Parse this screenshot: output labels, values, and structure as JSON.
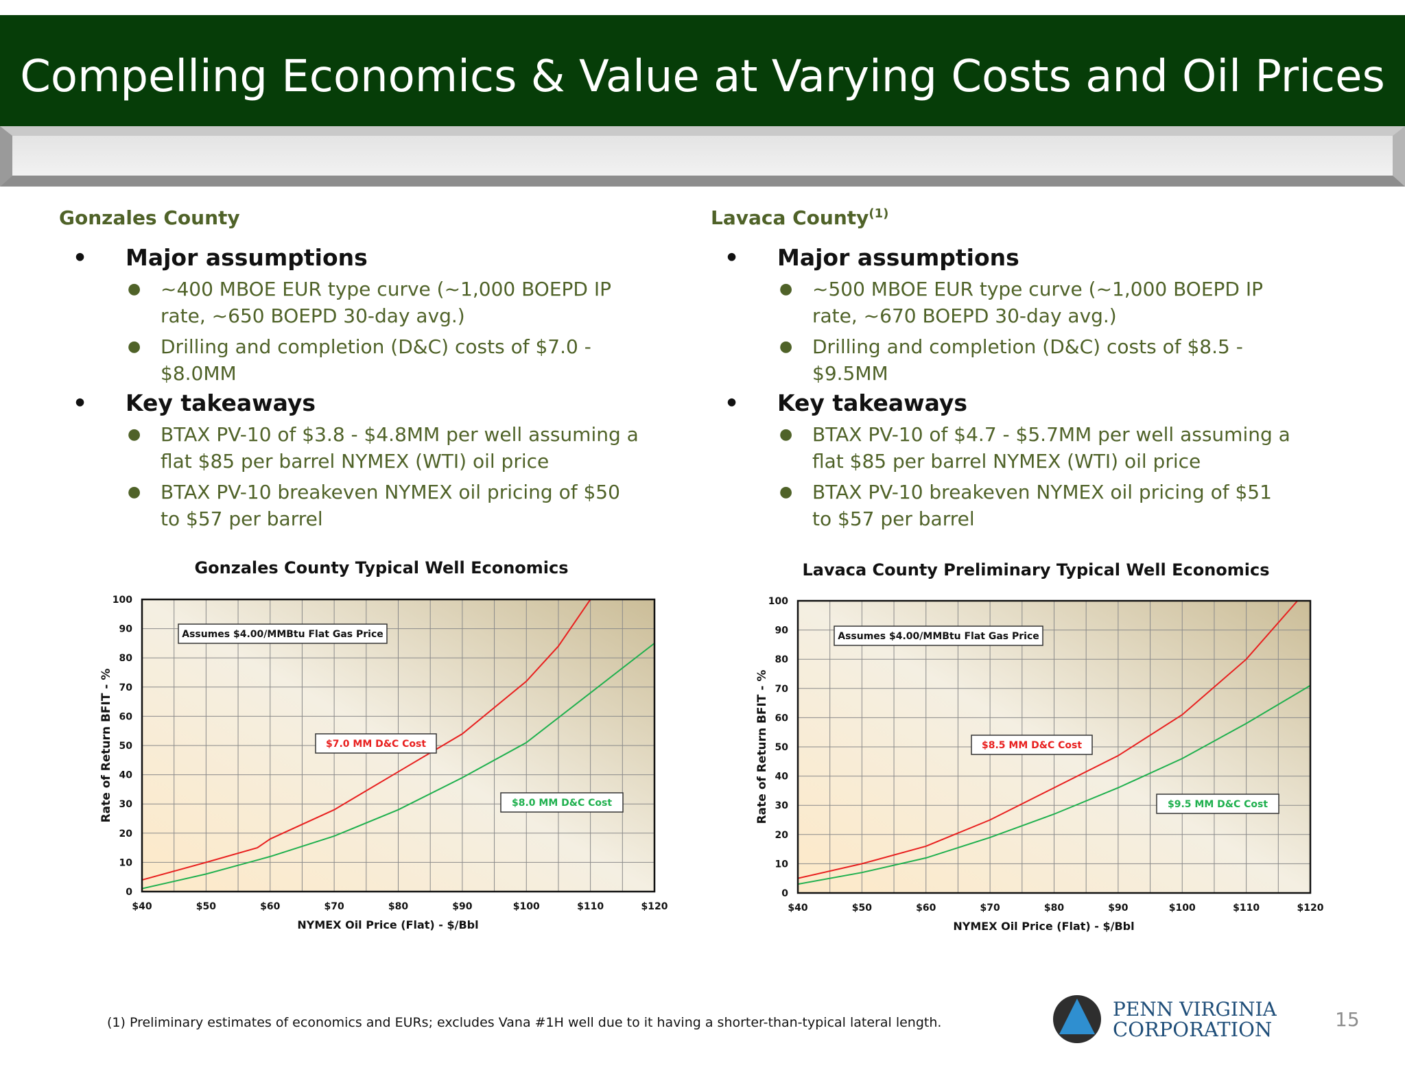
{
  "slide": {
    "title": "Compelling Economics & Value at Varying Costs and Oil Prices",
    "page_number": "15",
    "footnote": "(1) Preliminary estimates of economics and EURs; excludes Vana #1H well due to it having a shorter-than-typical lateral length.",
    "logo": {
      "line1": "PENN VIRGINIA",
      "line2": "CORPORATION",
      "icon": "triangle-in-circle-logo"
    }
  },
  "left": {
    "county": "Gonzales County",
    "h1": "Major assumptions",
    "a1": "~400 MBOE EUR type curve (~1,000 BOEPD IP rate, ~650 BOEPD 30-day avg.)",
    "a2": "Drilling and completion (D&C) costs of $7.0 - $8.0MM",
    "h2": "Key takeaways",
    "t1": "BTAX PV-10 of $3.8 - $4.8MM per well assuming a flat $85 per barrel NYMEX (WTI) oil price",
    "t2": "BTAX PV-10 breakeven NYMEX oil pricing of $50 to $57 per barrel"
  },
  "right": {
    "county": "Lavaca County",
    "county_sup": "(1)",
    "h1": "Major assumptions",
    "a1": "~500 MBOE EUR type curve (~1,000 BOEPD IP rate, ~670 BOEPD 30-day avg.)",
    "a2": "Drilling and completion (D&C) costs of $8.5 - $9.5MM",
    "h2": "Key takeaways",
    "t1": "BTAX PV-10 of $4.7 - $5.7MM per well assuming a flat $85 per barrel NYMEX (WTI) oil price",
    "t2": "BTAX PV-10 breakeven NYMEX oil pricing of $51 to $57 per barrel"
  },
  "colors": {
    "title_bg": "#063d08",
    "green_text": "#4f6228",
    "red_series": "#e8201f",
    "green_series": "#1fb04e"
  },
  "chart_data": [
    {
      "type": "line",
      "title": "Gonzales County Typical Well Economics",
      "xlabel": "NYMEX Oil Price (Flat) - $/Bbl",
      "ylabel": "Rate of Return BFIT - %",
      "xlim": [
        40,
        120
      ],
      "ylim": [
        0,
        100
      ],
      "x_ticks": [
        40,
        50,
        60,
        70,
        80,
        90,
        100,
        110,
        120
      ],
      "x_tick_labels": [
        "$40",
        "$50",
        "$60",
        "$70",
        "$80",
        "$90",
        "$100",
        "$110",
        "$120"
      ],
      "y_ticks": [
        0,
        10,
        20,
        30,
        40,
        50,
        60,
        70,
        80,
        90,
        100
      ],
      "grid": true,
      "annotation": "Assumes $4.00/MMBtu Flat Gas Price",
      "series": [
        {
          "name": "$7.0 MM D&C Cost",
          "color": "#e8201f",
          "x": [
            40,
            50,
            58,
            60,
            70,
            80,
            90,
            100,
            105,
            110
          ],
          "y": [
            4,
            10,
            15,
            18,
            28,
            41,
            54,
            72,
            84,
            100
          ]
        },
        {
          "name": "$8.0 MM D&C Cost",
          "color": "#1fb04e",
          "x": [
            40,
            50,
            60,
            70,
            80,
            90,
            100,
            110,
            120
          ],
          "y": [
            1,
            6,
            12,
            19,
            28,
            39,
            51,
            68,
            85
          ]
        }
      ]
    },
    {
      "type": "line",
      "title": "Lavaca County Preliminary Typical Well Economics",
      "xlabel": "NYMEX Oil Price (Flat) - $/Bbl",
      "ylabel": "Rate of Return BFIT - %",
      "xlim": [
        40,
        120
      ],
      "ylim": [
        0,
        100
      ],
      "x_ticks": [
        40,
        50,
        60,
        70,
        80,
        90,
        100,
        110,
        120
      ],
      "x_tick_labels": [
        "$40",
        "$50",
        "$60",
        "$70",
        "$80",
        "$90",
        "$100",
        "$110",
        "$120"
      ],
      "y_ticks": [
        0,
        10,
        20,
        30,
        40,
        50,
        60,
        70,
        80,
        90,
        100
      ],
      "grid": true,
      "annotation": "Assumes $4.00/MMBtu Flat Gas Price",
      "series": [
        {
          "name": "$8.5 MM D&C Cost",
          "color": "#e8201f",
          "x": [
            40,
            50,
            60,
            70,
            80,
            90,
            100,
            110,
            118
          ],
          "y": [
            5,
            10,
            16,
            25,
            36,
            47,
            61,
            80,
            100
          ]
        },
        {
          "name": "$9.5 MM D&C Cost",
          "color": "#1fb04e",
          "x": [
            40,
            50,
            60,
            70,
            80,
            90,
            100,
            110,
            120
          ],
          "y": [
            3,
            7,
            12,
            19,
            27,
            36,
            46,
            58,
            71
          ]
        }
      ]
    }
  ]
}
